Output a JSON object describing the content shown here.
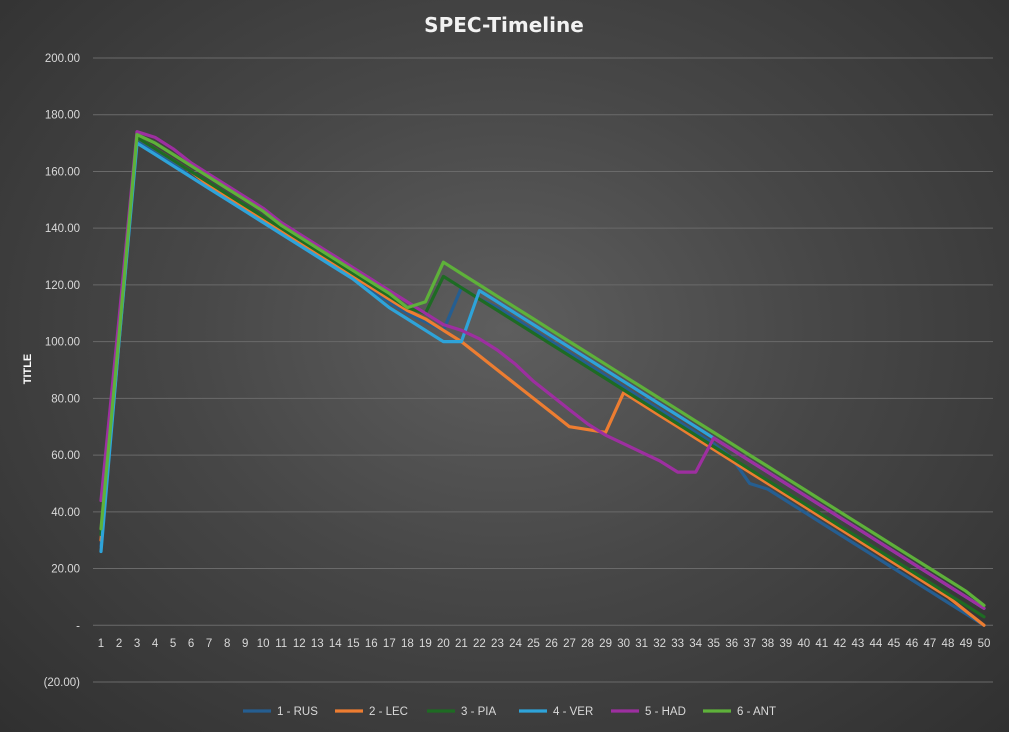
{
  "chart_data": {
    "type": "line",
    "title": "SPEC-Timeline",
    "xlabel": "",
    "ylabel": "TITLE",
    "ylim": [
      -20,
      200
    ],
    "y_ticks": [
      200,
      180,
      160,
      140,
      120,
      100,
      80,
      60,
      40,
      20,
      0,
      -20
    ],
    "y_tick_labels": [
      "200.00",
      "180.00",
      "160.00",
      "140.00",
      "120.00",
      "100.00",
      "80.00",
      "60.00",
      "40.00",
      "20.00",
      "-",
      "(20.00)"
    ],
    "x": [
      1,
      2,
      3,
      4,
      5,
      6,
      7,
      8,
      9,
      10,
      11,
      12,
      13,
      14,
      15,
      16,
      17,
      18,
      19,
      20,
      21,
      22,
      23,
      24,
      25,
      26,
      27,
      28,
      29,
      30,
      31,
      32,
      33,
      34,
      35,
      36,
      37,
      38,
      39,
      40,
      41,
      42,
      43,
      44,
      45,
      46,
      47,
      48,
      49,
      50
    ],
    "grid": true,
    "legend_position": "bottom",
    "series": [
      {
        "name": "1 - RUS",
        "color": "#255e91",
        "values": [
          28,
          100,
          171,
          167,
          163,
          158,
          154,
          150,
          146,
          142,
          138,
          134,
          130,
          126,
          122,
          118,
          114,
          110,
          107,
          104,
          119,
          115,
          112,
          108,
          104,
          100,
          96,
          92,
          88,
          84,
          80,
          76,
          72,
          68,
          64,
          59,
          50,
          48,
          44,
          40,
          36,
          32,
          28,
          24,
          20,
          16,
          12,
          8,
          4,
          0
        ]
      },
      {
        "name": "2 - LEC",
        "color": "#ed7d31",
        "values": [
          30,
          100,
          172,
          168,
          164,
          160,
          155,
          151,
          147,
          143,
          139,
          135,
          131,
          127,
          123,
          119,
          115,
          111,
          108,
          104,
          100,
          95,
          90,
          85,
          80,
          75,
          70,
          69,
          68,
          82,
          78,
          74,
          70,
          66,
          62,
          58,
          54,
          50,
          46,
          42,
          38,
          34,
          30,
          26,
          22,
          18,
          14,
          10,
          5,
          0
        ]
      },
      {
        "name": "3 - PIA",
        "color": "#1e6b23",
        "values": [
          32,
          100,
          172,
          168,
          164,
          160,
          156,
          152,
          148,
          144,
          140,
          136,
          132,
          128,
          124,
          120,
          116,
          112,
          110,
          123,
          119,
          115,
          111,
          107,
          103,
          99,
          95,
          91,
          87,
          83,
          79,
          75,
          71,
          67,
          63,
          59,
          55,
          51,
          47,
          43,
          39,
          35,
          31,
          27,
          23,
          19,
          15,
          11,
          7,
          3
        ]
      },
      {
        "name": "4 - VER",
        "color": "#2ea3d9",
        "values": [
          26,
          100,
          170,
          166,
          162,
          158,
          154,
          150,
          146,
          142,
          138,
          134,
          130,
          126,
          122,
          117,
          112,
          108,
          104,
          100,
          100,
          118,
          114,
          110,
          106,
          102,
          98,
          94,
          90,
          86,
          82,
          78,
          74,
          70,
          66,
          62,
          58,
          54,
          50,
          46,
          42,
          38,
          34,
          30,
          26,
          22,
          18,
          14,
          10,
          6
        ]
      },
      {
        "name": "5 - HAD",
        "color": "#9d2fa0",
        "values": [
          44,
          108,
          174,
          172,
          168,
          163,
          159,
          155,
          151,
          147,
          142,
          138,
          134,
          130,
          126,
          122,
          118,
          114,
          110,
          106,
          104,
          101,
          97,
          92,
          86,
          81,
          76,
          71,
          67,
          64,
          61,
          58,
          54,
          54,
          66,
          62,
          58,
          54,
          50,
          46,
          42,
          38,
          34,
          30,
          26,
          22,
          18,
          14,
          10,
          6
        ]
      },
      {
        "name": "6 - ANT",
        "color": "#5eb13a",
        "values": [
          34,
          102,
          173,
          170,
          166,
          162,
          158,
          154,
          150,
          146,
          141,
          137,
          133,
          129,
          125,
          121,
          117,
          112,
          114,
          128,
          124,
          120,
          116,
          112,
          108,
          104,
          100,
          96,
          92,
          88,
          84,
          80,
          76,
          72,
          68,
          64,
          60,
          56,
          52,
          48,
          44,
          40,
          36,
          32,
          28,
          24,
          20,
          16,
          12,
          7
        ]
      }
    ]
  }
}
